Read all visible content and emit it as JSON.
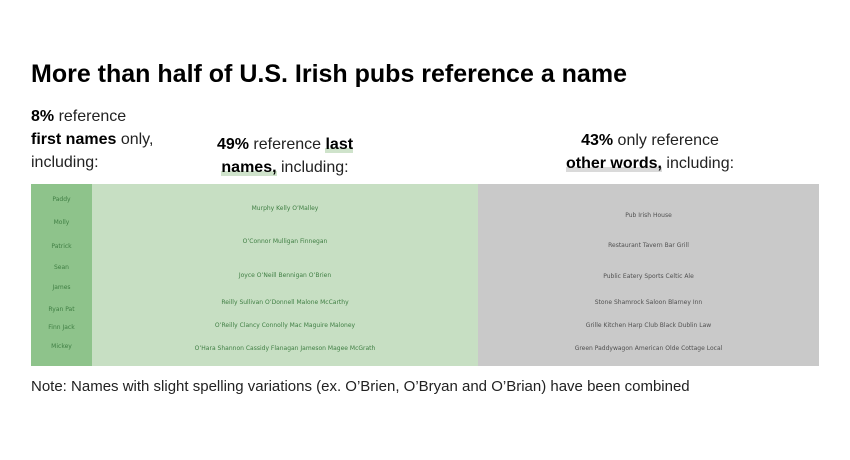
{
  "title": "More than half of U.S. Irish pubs reference a name",
  "captions": {
    "first": {
      "pct": "8%",
      "line1_rest": " reference",
      "bold2": "first names",
      "line2_rest": " only,",
      "line3": "including:"
    },
    "last": {
      "pct": "49%",
      "mid": " reference ",
      "bold_a": "last",
      "bold_b": "names,",
      "rest": " including:"
    },
    "other": {
      "pct": "43%",
      "line1_rest": " only reference",
      "bold2": "other words,",
      "line2_rest": " including:"
    }
  },
  "note": "Note: Names with slight spelling variations (ex. O’Brien, O’Bryan and O’Brian) have been combined",
  "colors": {
    "first_bg": "#8ec38b",
    "last_bg": "#c7dfc3",
    "other_bg": "#c9c9c9",
    "green_text": "#3f7e43",
    "grey_text": "#505050"
  },
  "chart_data": {
    "type": "word-cloud",
    "groups": [
      {
        "key": "first",
        "category": "first names only",
        "percent": 8,
        "rows": [
          [
            "Paddy"
          ],
          [
            "Molly"
          ],
          [
            "Patrick"
          ],
          [
            "Sean"
          ],
          [
            "James"
          ],
          [
            "Ryan Pat"
          ],
          [
            "Finn Jack"
          ],
          [
            "Mickey"
          ]
        ]
      },
      {
        "key": "last",
        "category": "last names",
        "percent": 49,
        "rows": [
          [
            "Murphy",
            "Kelly",
            "O’Malley"
          ],
          [
            "O’Connor",
            "Mulligan",
            "Finnegan"
          ],
          [
            "Joyce",
            "O’Neill",
            "Bennigan",
            "O’Brien"
          ],
          [
            "Reilly",
            "Sullivan",
            "O’Donnell",
            "Malone",
            "McCarthy"
          ],
          [
            "O’Reilly",
            "Clancy",
            "Connolly",
            "Mac",
            "Maguire",
            "Maloney"
          ],
          [
            "O’Hara",
            "Shannon",
            "Cassidy",
            "Flanagan",
            "Jameson",
            "Magee",
            "McGrath"
          ]
        ]
      },
      {
        "key": "other",
        "category": "other words",
        "percent": 43,
        "rows": [
          [
            "Pub",
            "Irish",
            "House"
          ],
          [
            "Restaurant",
            "Tavern",
            "Bar",
            "Grill"
          ],
          [
            "Public",
            "Eatery",
            "Sports",
            "Celtic",
            "Ale"
          ],
          [
            "Stone",
            "Shamrock",
            "Saloon",
            "Blarney",
            "Inn"
          ],
          [
            "Grille",
            "Kitchen",
            "Harp",
            "Club",
            "Black",
            "Dublin",
            "Law"
          ],
          [
            "Green",
            "Paddywagon",
            "American",
            "Olde",
            "Cottage",
            "Local"
          ]
        ]
      }
    ]
  }
}
